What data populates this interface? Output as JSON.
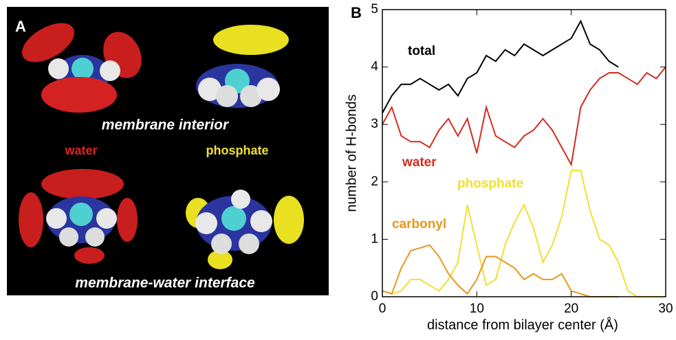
{
  "panel_a": {
    "panel_label": "A",
    "top_caption": "membrane interior",
    "left_label": "water",
    "right_label": "phosphate",
    "bottom_caption": "membrane-water interface"
  },
  "chart_data": {
    "type": "line",
    "panel_label": "B",
    "x_label": "distance from bilayer center (Å)",
    "y_label": "number of H-bonds",
    "x": [
      0,
      1,
      2,
      3,
      4,
      5,
      6,
      7,
      8,
      9,
      10,
      11,
      12,
      13,
      14,
      15,
      16,
      17,
      18,
      19,
      20,
      21,
      22,
      23,
      24,
      25,
      26,
      27,
      28,
      29,
      30
    ],
    "series": [
      {
        "name": "total",
        "color": "#000000",
        "values": [
          3.2,
          3.5,
          3.7,
          3.7,
          3.8,
          3.7,
          3.6,
          3.7,
          3.5,
          3.8,
          3.9,
          4.2,
          4.1,
          4.3,
          4.2,
          4.4,
          4.3,
          4.2,
          4.3,
          4.4,
          4.5,
          4.8,
          4.4,
          4.3,
          4.1,
          4.0,
          null,
          null,
          null,
          null,
          null
        ]
      },
      {
        "name": "water",
        "color": "#d42a1e",
        "values": [
          3.0,
          3.3,
          2.8,
          2.7,
          2.7,
          2.6,
          2.9,
          3.1,
          2.8,
          3.1,
          2.5,
          3.3,
          2.8,
          2.7,
          2.6,
          2.8,
          2.9,
          3.1,
          2.9,
          2.6,
          2.3,
          3.3,
          3.6,
          3.8,
          3.9,
          3.9,
          3.8,
          3.7,
          3.9,
          3.8,
          4.0
        ]
      },
      {
        "name": "phosphate",
        "color": "#f0e030",
        "values": [
          0.1,
          0.05,
          0.1,
          0.3,
          0.3,
          0.2,
          0.1,
          0.3,
          0.6,
          1.6,
          0.9,
          0.2,
          0.3,
          0.9,
          1.3,
          1.6,
          1.2,
          0.6,
          0.9,
          1.4,
          2.2,
          2.2,
          1.5,
          1.0,
          0.9,
          0.6,
          0.1,
          0,
          0,
          0,
          0
        ]
      },
      {
        "name": "carbonyl",
        "color": "#e8961e",
        "values": [
          0.1,
          0.05,
          0.5,
          0.8,
          0.85,
          0.9,
          0.7,
          0.4,
          0.2,
          0.05,
          0.3,
          0.7,
          0.7,
          0.6,
          0.5,
          0.3,
          0.4,
          0.3,
          0.3,
          0.4,
          0.1,
          0.05,
          0,
          0,
          0,
          0,
          null,
          null,
          null,
          null,
          null
        ]
      }
    ],
    "xlim": [
      0,
      30
    ],
    "ylim": [
      0,
      5
    ],
    "xticks": [
      0,
      10,
      20,
      30
    ],
    "yticks": [
      0,
      1,
      2,
      3,
      4,
      5
    ]
  }
}
